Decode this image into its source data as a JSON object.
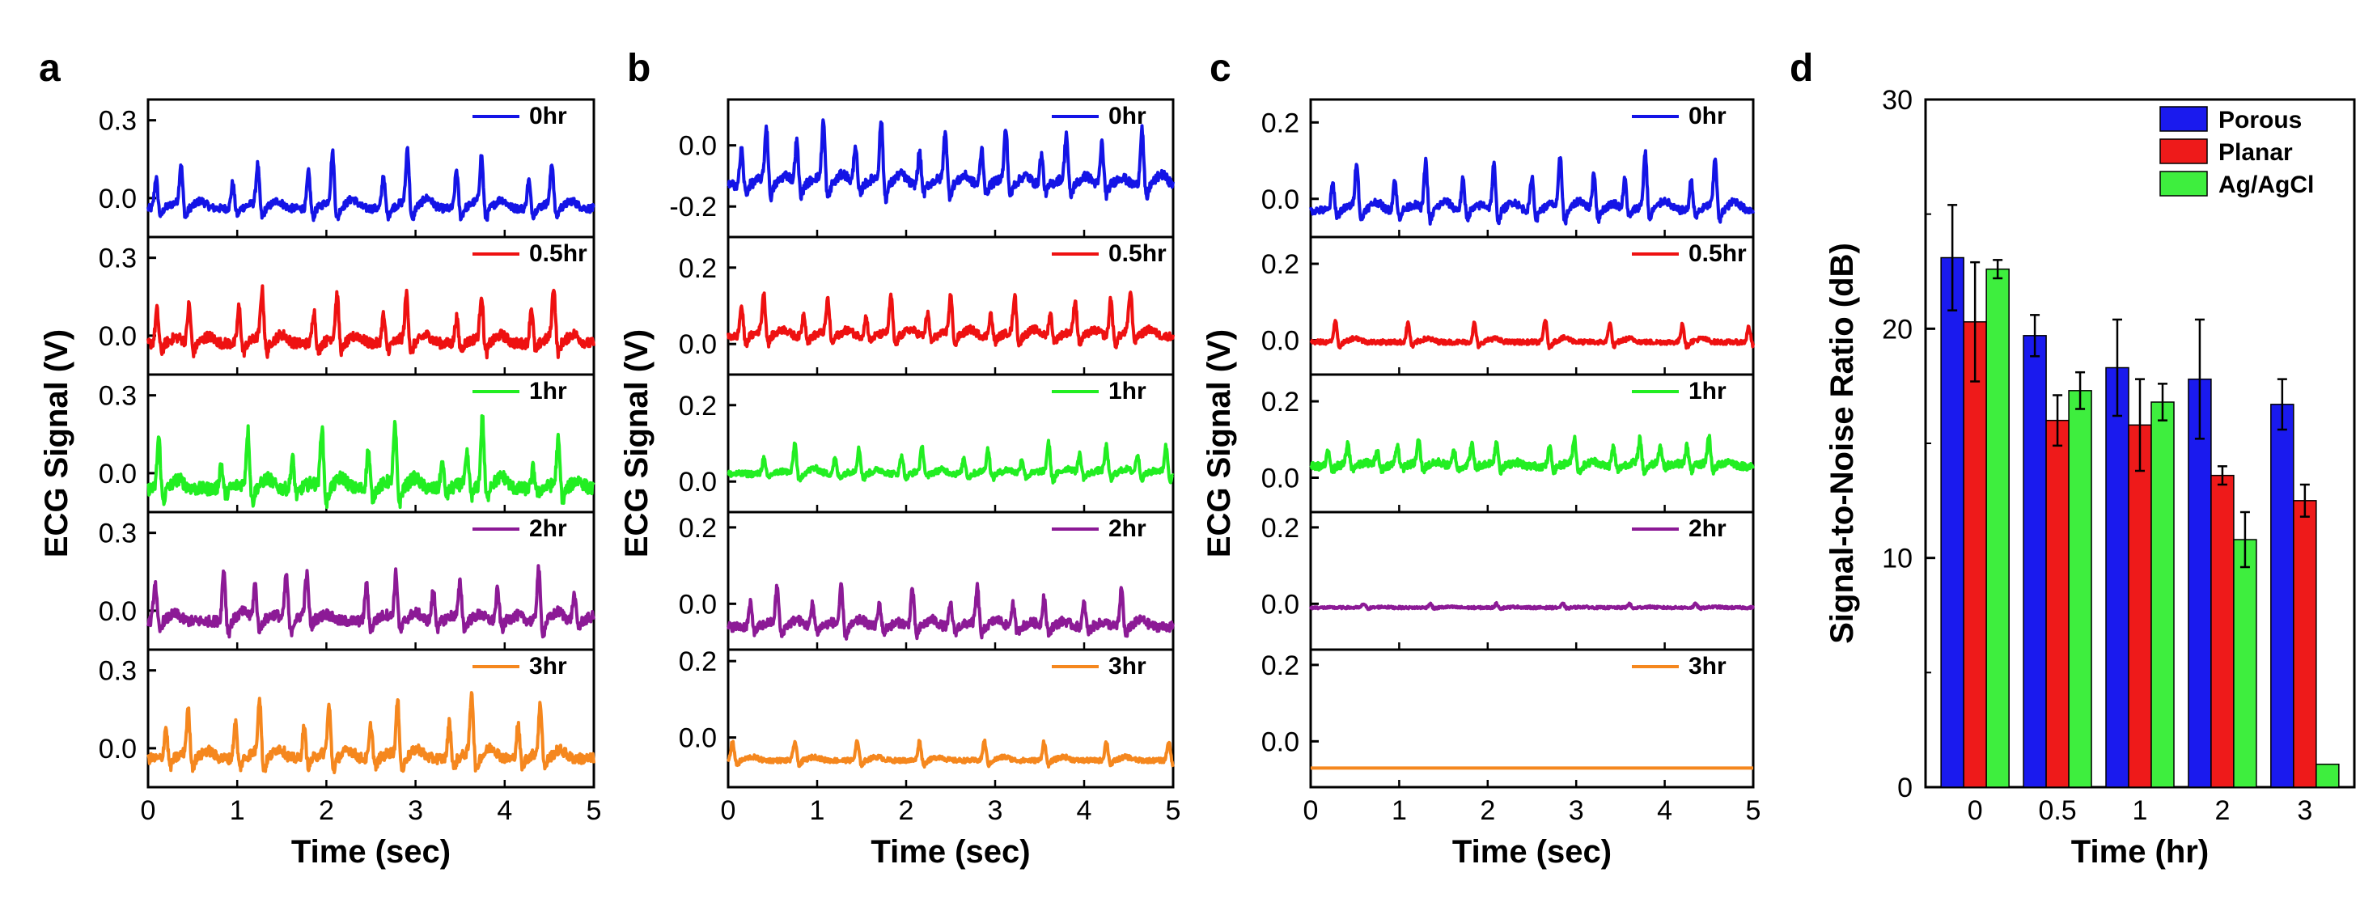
{
  "figure": {
    "description_free": true
  },
  "chart_data": [
    {
      "type": "line",
      "panel": "a",
      "xlabel": "Time (sec)",
      "ylabel": "ECG Signal (V)",
      "xlim": [
        0,
        5
      ],
      "xticks": [
        "0",
        "1",
        "2",
        "3",
        "4",
        "5"
      ],
      "subplots": [
        {
          "name": "0hr",
          "color": "#1414e6",
          "ylim": [
            -0.15,
            0.38
          ],
          "yticks": [
            0.3,
            0.0
          ],
          "ytick_labels": [
            "0.3",
            "0.0"
          ],
          "peaks": [
            0.09,
            0.37,
            0.95,
            1.23,
            1.8,
            2.07,
            2.64,
            2.91,
            3.46,
            3.74,
            4.27,
            4.53
          ],
          "amps": [
            0.12,
            0.16,
            0.1,
            0.16,
            0.14,
            0.2,
            0.13,
            0.22,
            0.15,
            0.19,
            0.11,
            0.16
          ],
          "baseline": -0.04,
          "noise": 0.015
        },
        {
          "name": "0.5hr",
          "color": "#ee1111",
          "ylim": [
            -0.15,
            0.38
          ],
          "yticks": [
            0.3,
            0.0
          ],
          "ytick_labels": [
            "0.3",
            "0.0"
          ],
          "peaks": [
            0.1,
            0.46,
            1.02,
            1.28,
            1.86,
            2.12,
            2.64,
            2.9,
            3.46,
            3.74,
            4.3,
            4.55
          ],
          "amps": [
            0.13,
            0.15,
            0.14,
            0.19,
            0.13,
            0.17,
            0.11,
            0.18,
            0.1,
            0.18,
            0.14,
            0.2
          ],
          "baseline": -0.03,
          "noise": 0.02
        },
        {
          "name": "1hr",
          "color": "#22ee22",
          "ylim": [
            -0.15,
            0.38
          ],
          "yticks": [
            0.3,
            0.0
          ],
          "ytick_labels": [
            "0.3",
            "0.0"
          ],
          "peaks": [
            0.12,
            0.82,
            1.12,
            1.62,
            1.95,
            2.47,
            2.77,
            3.3,
            3.58,
            3.75,
            4.32,
            4.6
          ],
          "amps": [
            0.2,
            0.1,
            0.22,
            0.12,
            0.24,
            0.15,
            0.23,
            0.1,
            0.12,
            0.26,
            0.08,
            0.18
          ],
          "baseline": -0.06,
          "noise": 0.025
        },
        {
          "name": "2hr",
          "color": "#8c1a96",
          "ylim": [
            -0.15,
            0.38
          ],
          "yticks": [
            0.3,
            0.0
          ],
          "ytick_labels": [
            "0.3",
            "0.0"
          ],
          "peaks": [
            0.08,
            0.85,
            1.2,
            1.55,
            1.78,
            2.45,
            2.78,
            3.2,
            3.5,
            3.92,
            4.38,
            4.78
          ],
          "amps": [
            0.15,
            0.2,
            0.14,
            0.18,
            0.15,
            0.14,
            0.18,
            0.12,
            0.14,
            0.12,
            0.2,
            0.1
          ],
          "baseline": -0.04,
          "noise": 0.02
        },
        {
          "name": "3hr",
          "color": "#f5871e",
          "ylim": [
            -0.15,
            0.38
          ],
          "yticks": [
            0.3,
            0.0
          ],
          "ytick_labels": [
            "0.3",
            "0.0"
          ],
          "peaks": [
            0.2,
            0.45,
            0.98,
            1.25,
            1.75,
            2.03,
            2.5,
            2.8,
            3.38,
            3.63,
            4.15,
            4.4
          ],
          "amps": [
            0.12,
            0.17,
            0.14,
            0.22,
            0.12,
            0.19,
            0.13,
            0.21,
            0.14,
            0.24,
            0.13,
            0.19
          ],
          "baseline": -0.04,
          "noise": 0.02
        }
      ]
    },
    {
      "type": "line",
      "panel": "b",
      "xlabel": "Time (sec)",
      "ylabel": "ECG Signal (V)",
      "xlim": [
        0,
        5
      ],
      "xticks": [
        "0",
        "1",
        "2",
        "3",
        "4",
        "5"
      ],
      "subplots": [
        {
          "name": "0hr",
          "color": "#1414e6",
          "ylim": [
            -0.3,
            0.15
          ],
          "yticks": [
            0.0,
            -0.2
          ],
          "ytick_labels": [
            "0.0",
            "-0.2"
          ],
          "peaks": [
            0.15,
            0.43,
            0.77,
            1.07,
            1.43,
            1.72,
            2.15,
            2.44,
            2.85,
            3.12,
            3.52,
            3.8,
            4.2,
            4.65
          ],
          "amps": [
            0.12,
            0.18,
            0.14,
            0.2,
            0.13,
            0.2,
            0.11,
            0.17,
            0.12,
            0.17,
            0.1,
            0.16,
            0.14,
            0.19
          ],
          "baseline": -0.13,
          "noise": 0.015
        },
        {
          "name": "0.5hr",
          "color": "#ee1111",
          "ylim": [
            -0.08,
            0.28
          ],
          "yticks": [
            0.2,
            0.0
          ],
          "ytick_labels": [
            "0.2",
            "0.0"
          ],
          "peaks": [
            0.15,
            0.4,
            0.85,
            1.12,
            1.55,
            1.83,
            2.24,
            2.5,
            2.95,
            3.22,
            3.62,
            3.9,
            4.3,
            4.52
          ],
          "amps": [
            0.08,
            0.1,
            0.06,
            0.09,
            0.05,
            0.1,
            0.06,
            0.1,
            0.06,
            0.1,
            0.06,
            0.09,
            0.1,
            0.1
          ],
          "baseline": 0.02,
          "noise": 0.01
        },
        {
          "name": "1hr",
          "color": "#22ee22",
          "ylim": [
            -0.08,
            0.28
          ],
          "yticks": [
            0.2,
            0.0
          ],
          "ytick_labels": [
            "0.2",
            "0.0"
          ],
          "peaks": [
            0.4,
            0.75,
            1.2,
            1.47,
            1.95,
            2.18,
            2.65,
            2.92,
            3.3,
            3.6,
            3.95,
            4.25,
            4.6,
            4.92
          ],
          "amps": [
            0.04,
            0.08,
            0.04,
            0.06,
            0.05,
            0.06,
            0.04,
            0.06,
            0.04,
            0.08,
            0.05,
            0.07,
            0.05,
            0.07
          ],
          "baseline": 0.02,
          "noise": 0.008
        },
        {
          "name": "2hr",
          "color": "#8c1a96",
          "ylim": [
            -0.12,
            0.24
          ],
          "yticks": [
            0.2,
            0.0
          ],
          "ytick_labels": [
            "0.2",
            "0.0"
          ],
          "peaks": [
            0.25,
            0.55,
            0.95,
            1.27,
            1.7,
            2.07,
            2.5,
            2.8,
            3.2,
            3.55,
            4.0,
            4.42
          ],
          "amps": [
            0.06,
            0.1,
            0.06,
            0.1,
            0.06,
            0.1,
            0.06,
            0.1,
            0.06,
            0.08,
            0.06,
            0.1
          ],
          "baseline": -0.06,
          "noise": 0.012
        },
        {
          "name": "3hr",
          "color": "#f5871e",
          "ylim": [
            -0.13,
            0.23
          ],
          "yticks": [
            0.2,
            0.0
          ],
          "ytick_labels": [
            "0.2",
            "0.0"
          ],
          "peaks": [
            0.05,
            0.75,
            1.45,
            2.15,
            2.88,
            3.55,
            4.25,
            4.95
          ],
          "amps": [
            0.05,
            0.05,
            0.05,
            0.05,
            0.05,
            0.05,
            0.05,
            0.05
          ],
          "baseline": -0.06,
          "noise": 0.006
        }
      ]
    },
    {
      "type": "line",
      "panel": "c",
      "xlabel": "Time (sec)",
      "ylabel": "ECG Signal (V)",
      "xlim": [
        0,
        5
      ],
      "xticks": [
        "0",
        "1",
        "2",
        "3",
        "4",
        "5"
      ],
      "subplots": [
        {
          "name": "0hr",
          "color": "#1414e6",
          "ylim": [
            -0.1,
            0.26
          ],
          "yticks": [
            0.2,
            0.0
          ],
          "ytick_labels": [
            "0.2",
            "0.0"
          ],
          "peaks": [
            0.25,
            0.52,
            0.95,
            1.3,
            1.72,
            2.07,
            2.5,
            2.82,
            3.2,
            3.55,
            3.78,
            4.3,
            4.57
          ],
          "amps": [
            0.07,
            0.12,
            0.08,
            0.13,
            0.08,
            0.12,
            0.09,
            0.14,
            0.1,
            0.08,
            0.14,
            0.08,
            0.13
          ],
          "baseline": -0.03,
          "noise": 0.01
        },
        {
          "name": "0.5hr",
          "color": "#ee1111",
          "ylim": [
            -0.09,
            0.27
          ],
          "yticks": [
            0.2,
            0.0
          ],
          "ytick_labels": [
            "0.2",
            "0.0"
          ],
          "peaks": [
            0.28,
            1.1,
            1.85,
            2.65,
            3.38,
            4.2,
            4.95
          ],
          "amps": [
            0.06,
            0.05,
            0.05,
            0.06,
            0.05,
            0.05,
            0.04
          ],
          "baseline": -0.005,
          "noise": 0.006
        },
        {
          "name": "1hr",
          "color": "#22ee22",
          "ylim": [
            -0.09,
            0.27
          ],
          "yticks": [
            0.2,
            0.0
          ],
          "ytick_labels": [
            "0.2",
            "0.0"
          ],
          "peaks": [
            0.2,
            0.42,
            0.75,
            0.98,
            1.22,
            1.62,
            1.82,
            2.1,
            2.7,
            2.98,
            3.42,
            3.72,
            3.95,
            4.25,
            4.5
          ],
          "amps": [
            0.04,
            0.05,
            0.04,
            0.05,
            0.06,
            0.04,
            0.05,
            0.06,
            0.05,
            0.07,
            0.05,
            0.07,
            0.04,
            0.05,
            0.07
          ],
          "baseline": 0.03,
          "noise": 0.01
        },
        {
          "name": "2hr",
          "color": "#8c1a96",
          "ylim": [
            -0.12,
            0.24
          ],
          "yticks": [
            0.2,
            0.0
          ],
          "ytick_labels": [
            "0.2",
            "0.0"
          ],
          "peaks": [
            0.6,
            1.35,
            2.1,
            2.85,
            3.6,
            4.35
          ],
          "amps": [
            0.01,
            0.01,
            0.01,
            0.01,
            0.01,
            0.01
          ],
          "baseline": -0.01,
          "noise": 0.003
        },
        {
          "name": "3hr",
          "color": "#f5871e",
          "ylim": [
            -0.12,
            0.24
          ],
          "yticks": [
            0.2,
            0.0
          ],
          "ytick_labels": [
            "0.2",
            "0.0"
          ],
          "peaks": [],
          "amps": [],
          "baseline": -0.07,
          "noise": 0.0
        }
      ]
    },
    {
      "type": "bar",
      "panel": "d",
      "xlabel": "Time (hr)",
      "ylabel": "Signal-to-Noise Ratio (dB)",
      "ylim": [
        0,
        30
      ],
      "yticks": [
        0,
        10,
        20,
        30
      ],
      "ytick_labels": [
        "0",
        "10",
        "20",
        "30"
      ],
      "categories": [
        "0",
        "0.5",
        "1",
        "2",
        "3"
      ],
      "legend_position": "top-right",
      "series": [
        {
          "name": "Porous",
          "color": "#1a1aee",
          "values": [
            23.1,
            19.7,
            18.3,
            17.8,
            16.7
          ],
          "errors": [
            2.3,
            0.9,
            2.1,
            2.6,
            1.1
          ]
        },
        {
          "name": "Planar",
          "color": "#ee1a1a",
          "values": [
            20.3,
            16.0,
            15.8,
            13.6,
            12.5
          ],
          "errors": [
            2.6,
            1.1,
            2.0,
            0.4,
            0.7
          ]
        },
        {
          "name": "Ag/AgCl",
          "color": "#3eee3e",
          "values": [
            22.6,
            17.3,
            16.8,
            10.8,
            1.0
          ],
          "errors": [
            0.4,
            0.8,
            0.8,
            1.2,
            0.0
          ]
        }
      ]
    }
  ]
}
